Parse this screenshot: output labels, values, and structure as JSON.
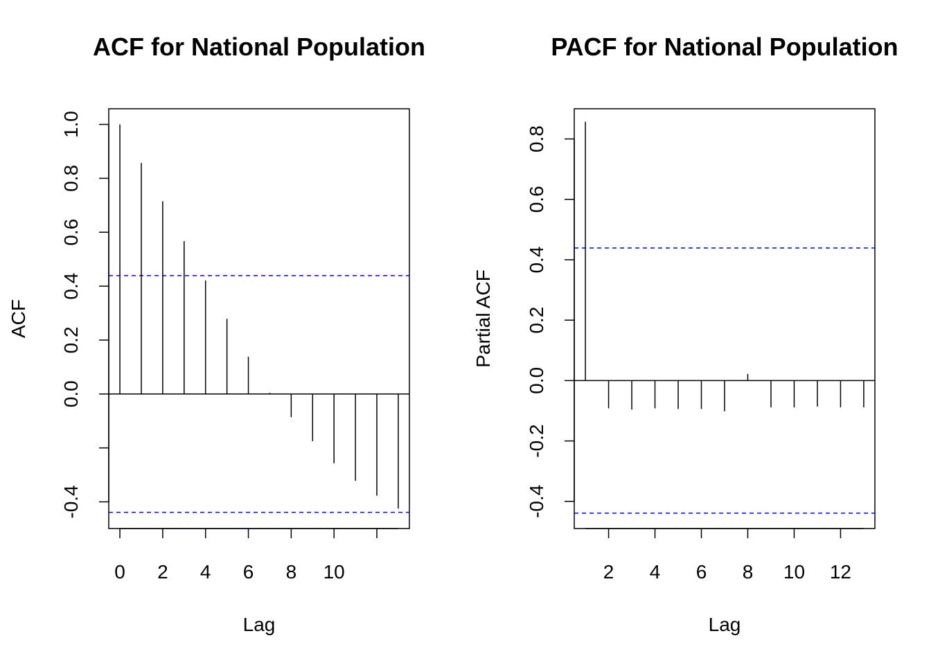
{
  "chart_data": [
    {
      "type": "bar",
      "subtype": "acf-stem",
      "title": "ACF for National Population",
      "xlabel": "Lag",
      "ylabel": "ACF",
      "x": [
        0,
        1,
        2,
        3,
        4,
        5,
        6,
        7,
        8,
        9,
        10,
        11,
        12,
        13
      ],
      "values": [
        1.0,
        0.857,
        0.715,
        0.567,
        0.421,
        0.279,
        0.138,
        0.004,
        -0.086,
        -0.175,
        -0.257,
        -0.322,
        -0.377,
        -0.425
      ],
      "xlim": [
        -0.52,
        13.52
      ],
      "ylim": [
        -0.499,
        1.058
      ],
      "x_ticks": [
        0,
        2,
        4,
        6,
        8,
        10
      ],
      "y_ticks": [
        -0.4,
        0.2,
        0.4,
        0.6,
        0.8,
        1.0
      ],
      "y_tick_labels": [
        "-0.4",
        "0.2",
        "0.4",
        "0.6",
        "0.8",
        "1.0"
      ],
      "y_tick_marks_unlabeled": [
        -0.2,
        0.0
      ],
      "y_zero_label": "0.0",
      "confidence_bound": 0.439,
      "zero_line": true,
      "colors": {
        "stem": "#000000",
        "confidence": "#0000ff"
      }
    },
    {
      "type": "bar",
      "subtype": "pacf-stem",
      "title": "PACF for National Population",
      "xlabel": "Lag",
      "ylabel": "Partial ACF",
      "x": [
        1,
        2,
        3,
        4,
        5,
        6,
        7,
        8,
        9,
        10,
        11,
        12,
        13
      ],
      "values": [
        0.857,
        -0.092,
        -0.096,
        -0.092,
        -0.094,
        -0.094,
        -0.102,
        0.022,
        -0.089,
        -0.089,
        -0.086,
        -0.089,
        -0.089
      ],
      "xlim": [
        0.52,
        13.48
      ],
      "ylim": [
        -0.49,
        0.9
      ],
      "x_ticks": [
        2,
        4,
        6,
        8,
        10,
        12
      ],
      "y_ticks": [
        -0.4,
        -0.2,
        0.0,
        0.2,
        0.4,
        0.6,
        0.8
      ],
      "y_tick_labels": [
        "-0.4",
        "-0.2",
        "0.0",
        "0.2",
        "0.4",
        "0.6",
        "0.8"
      ],
      "confidence_bound": 0.439,
      "zero_line": true,
      "colors": {
        "stem": "#000000",
        "confidence": "#0000ff"
      }
    }
  ]
}
